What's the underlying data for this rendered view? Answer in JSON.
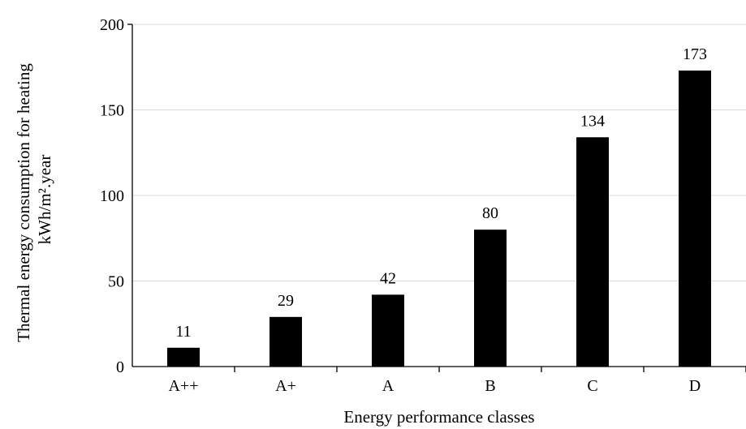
{
  "chart_data": {
    "type": "bar",
    "categories": [
      "A++",
      "A+",
      "A",
      "B",
      "C",
      "D"
    ],
    "values": [
      11,
      29,
      42,
      80,
      134,
      173
    ],
    "data_labels": [
      "11",
      "29",
      "42",
      "80",
      "134",
      "173"
    ],
    "xlabel": "Energy performance classes",
    "ylabel_lines": [
      "Thermal energy consumption for heating",
      "kWh/m².year"
    ],
    "ylim": [
      0,
      200
    ],
    "yticks": [
      0,
      50,
      100,
      150,
      200
    ],
    "ytick_labels": [
      "0",
      "50",
      "100",
      "150",
      "200"
    ],
    "grid": "horizontal",
    "legend": "none",
    "colors": {
      "bar": "#000000",
      "grid": "#d9d9d9",
      "axis": "#000000"
    }
  }
}
